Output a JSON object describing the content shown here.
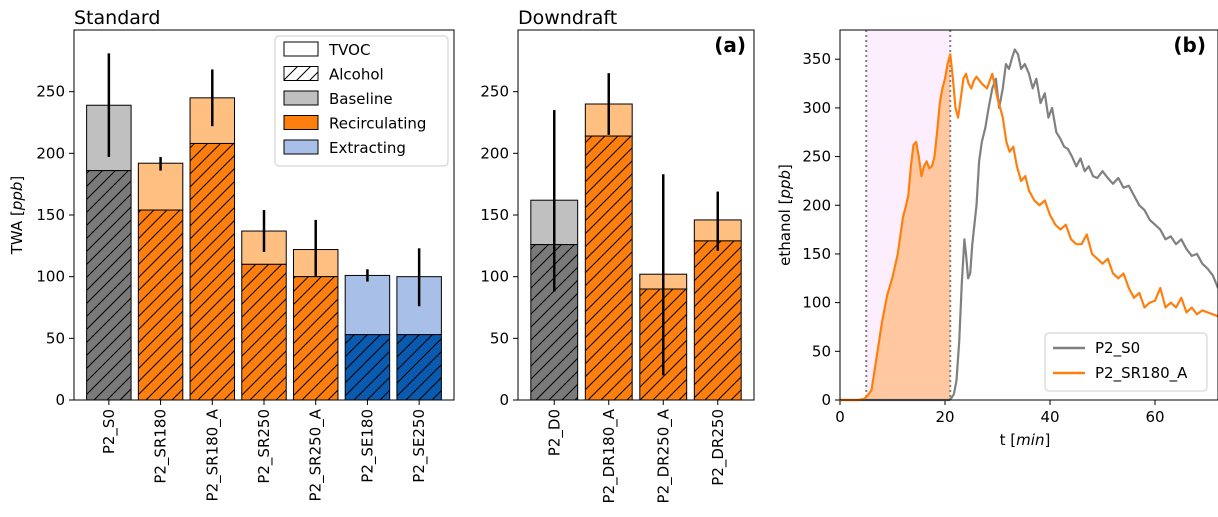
{
  "colors": {
    "baseline_dark": "#7a7a7a",
    "baseline_light": "#c0c0c0",
    "recirc_dark": "#ff7f0e",
    "recirc_light": "#ffbf80",
    "extract_dark": "#0a5bb0",
    "extract_light": "#a8c0e8",
    "line_s0": "#808080",
    "line_sr180": "#ff7f0e",
    "shade": "#fdeefd",
    "fill_orange": "#ffc8a0"
  },
  "chart_data": [
    {
      "type": "bar",
      "title": "Standard",
      "ylabel": "TWA [",
      "ylabel_unit": "ppb",
      "ylabel_end": "]",
      "ylim": [
        0,
        300
      ],
      "yticks": [
        0,
        50,
        100,
        150,
        200,
        250
      ],
      "categories": [
        "P2_S0",
        "P2_SR180",
        "P2_SR180_A",
        "P2_SR250",
        "P2_SR250_A",
        "P2_SE180",
        "P2_SE250"
      ],
      "groups": [
        "baseline",
        "recirculating",
        "recirculating",
        "recirculating",
        "recirculating",
        "extracting",
        "extracting"
      ],
      "series": [
        {
          "name": "TVOC",
          "values": [
            239,
            192,
            245,
            137,
            122,
            101,
            100
          ]
        },
        {
          "name": "Alcohol",
          "values": [
            186,
            154,
            208,
            110,
            100,
            53,
            53
          ]
        }
      ],
      "error_low": [
        197,
        186,
        222,
        120,
        100,
        96,
        76
      ],
      "error_high": [
        281,
        197,
        268,
        154,
        146,
        106,
        123
      ],
      "legend": {
        "position": "top-right",
        "entries": [
          {
            "label": "TVOC",
            "style": "outline"
          },
          {
            "label": "Alcohol",
            "style": "hatch"
          },
          {
            "label": "Baseline",
            "style": "baseline"
          },
          {
            "label": "Recirculating",
            "style": "recirculating"
          },
          {
            "label": "Extracting",
            "style": "extracting"
          }
        ]
      },
      "grid": false
    },
    {
      "type": "bar",
      "title": "Downdraft",
      "panel_label": "(a)",
      "ylim": [
        0,
        300
      ],
      "yticks": [
        0,
        50,
        100,
        150,
        200,
        250
      ],
      "categories": [
        "P2_D0",
        "P2_DR180_A",
        "P2_DR250_A",
        "P2_DR250"
      ],
      "groups": [
        "baseline",
        "recirculating",
        "recirculating",
        "recirculating"
      ],
      "series": [
        {
          "name": "TVOC",
          "values": [
            162,
            240,
            102,
            146
          ]
        },
        {
          "name": "Alcohol",
          "values": [
            126,
            214,
            90,
            129
          ]
        }
      ],
      "error_low": [
        88,
        215,
        20,
        121
      ],
      "error_high": [
        235,
        265,
        183,
        169
      ],
      "grid": false
    },
    {
      "type": "line",
      "panel_label": "(b)",
      "xlabel": "t [",
      "xlabel_unit": "min",
      "xlabel_end": "]",
      "ylabel": "ethanol [",
      "ylabel_unit": "ppb",
      "ylabel_end": "]",
      "xlim": [
        0,
        72
      ],
      "ylim": [
        0,
        380
      ],
      "xticks": [
        0,
        20,
        40,
        60
      ],
      "yticks": [
        0,
        50,
        100,
        150,
        200,
        250,
        300,
        350
      ],
      "vlines": [
        5,
        21
      ],
      "shaded_span": [
        5,
        21
      ],
      "legend": {
        "position": "bottom-right",
        "entries": [
          "P2_S0",
          "P2_SR180_A"
        ]
      },
      "series": [
        {
          "name": "P2_S0",
          "x": [
            0,
            20,
            20.8,
            21.2,
            21.7,
            22.2,
            22.7,
            23.2,
            23.7,
            24,
            24.4,
            24.8,
            25.2,
            26,
            26.5,
            27,
            27.7,
            28.3,
            29,
            29.7,
            30.3,
            31,
            31.6,
            32.2,
            32.8,
            33.3,
            33.9,
            34.5,
            35.2,
            36,
            36.7,
            37.4,
            38.2,
            39,
            39.7,
            40.4,
            41.2,
            42,
            42.7,
            43.4,
            44.2,
            45,
            45.8,
            46.6,
            47.4,
            48.2,
            49,
            50,
            51,
            52,
            53,
            54,
            55,
            56,
            57,
            58,
            59,
            60,
            61,
            62,
            63,
            64,
            65,
            66,
            67,
            68,
            69,
            70,
            71,
            72
          ],
          "values": [
            0,
            0,
            0,
            2,
            6,
            20,
            60,
            120,
            165,
            150,
            125,
            130,
            160,
            200,
            245,
            265,
            280,
            300,
            320,
            330,
            300,
            320,
            345,
            340,
            352,
            360,
            355,
            340,
            345,
            335,
            320,
            330,
            305,
            315,
            290,
            300,
            275,
            268,
            260,
            258,
            250,
            240,
            248,
            235,
            240,
            230,
            228,
            235,
            228,
            222,
            228,
            218,
            220,
            210,
            200,
            195,
            185,
            180,
            175,
            165,
            168,
            160,
            165,
            155,
            148,
            150,
            140,
            135,
            128,
            115
          ]
        },
        {
          "name": "P2_SR180_A",
          "x": [
            0,
            2,
            3.5,
            4.5,
            5,
            6,
            7,
            8,
            9,
            10,
            11,
            12,
            12.5,
            13,
            13.5,
            14,
            14.5,
            15,
            15.5,
            16,
            16.5,
            17,
            17.5,
            18,
            18.5,
            19,
            19.5,
            20,
            20.5,
            21,
            21.5,
            22,
            22.5,
            23,
            23.5,
            24,
            24.5,
            25,
            25.5,
            26,
            27,
            28,
            29,
            30,
            31,
            31.7,
            32.3,
            33,
            33.7,
            34.5,
            35.3,
            36,
            37,
            38,
            39,
            40,
            41,
            42,
            43,
            44,
            45,
            46,
            47,
            48,
            49,
            50,
            51,
            52,
            53,
            54,
            55,
            56,
            57,
            58,
            59,
            60,
            61,
            62,
            63,
            64,
            65,
            66,
            67,
            68,
            69,
            70,
            71,
            72
          ],
          "values": [
            0,
            0,
            0,
            1,
            3,
            10,
            45,
            80,
            108,
            126,
            150,
            188,
            198,
            210,
            240,
            262,
            265,
            250,
            230,
            240,
            245,
            238,
            240,
            250,
            275,
            305,
            320,
            330,
            345,
            355,
            330,
            300,
            290,
            310,
            330,
            335,
            325,
            320,
            328,
            332,
            325,
            320,
            335,
            310,
            290,
            265,
            255,
            260,
            240,
            225,
            230,
            215,
            205,
            200,
            205,
            190,
            180,
            175,
            180,
            165,
            160,
            160,
            170,
            150,
            145,
            140,
            145,
            130,
            125,
            130,
            115,
            105,
            110,
            95,
            100,
            102,
            115,
            95,
            100,
            95,
            105,
            90,
            95,
            88,
            92,
            90,
            88,
            86
          ]
        }
      ]
    }
  ]
}
